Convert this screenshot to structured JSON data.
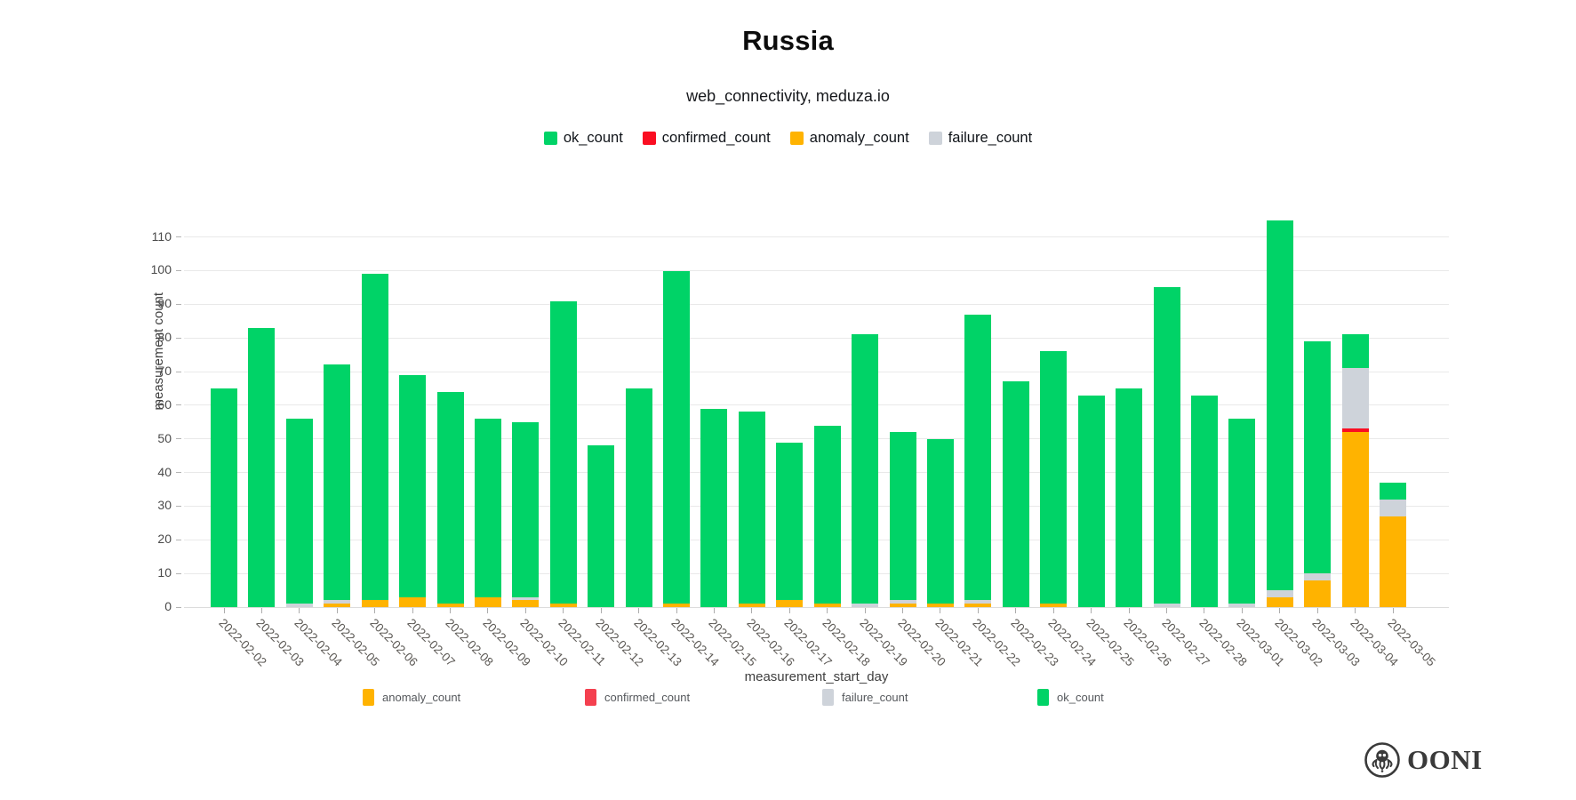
{
  "header": {
    "title": "Russia",
    "subtitle": "web_connectivity, meduza.io"
  },
  "top_legend": [
    {
      "label": "ok_count",
      "color": "#00d367"
    },
    {
      "label": "confirmed_count",
      "color": "#fa0e22"
    },
    {
      "label": "anomaly_count",
      "color": "#ffb300"
    },
    {
      "label": "failure_count",
      "color": "#ced3da"
    }
  ],
  "bottom_legend": [
    {
      "label": "anomaly_count",
      "color": "#ffb300"
    },
    {
      "label": "confirmed_count",
      "color": "#f4404f"
    },
    {
      "label": "failure_count",
      "color": "#ced3da"
    },
    {
      "label": "ok_count",
      "color": "#00d367"
    }
  ],
  "footer": {
    "brand": "OONI"
  },
  "chart_data": {
    "type": "bar",
    "stacked": true,
    "title": "Russia",
    "subtitle": "web_connectivity, meduza.io",
    "xlabel": "measurement_start_day",
    "ylabel": "measurement count",
    "ylim": [
      0,
      121
    ],
    "y_ticks": [
      0,
      10,
      20,
      30,
      40,
      50,
      60,
      70,
      80,
      90,
      100,
      110
    ],
    "grid": "horizontal",
    "legend_position": "top",
    "categories": [
      "2022-02-02",
      "2022-02-03",
      "2022-02-04",
      "2022-02-05",
      "2022-02-06",
      "2022-02-07",
      "2022-02-08",
      "2022-02-09",
      "2022-02-10",
      "2022-02-11",
      "2022-02-12",
      "2022-02-13",
      "2022-02-14",
      "2022-02-15",
      "2022-02-16",
      "2022-02-17",
      "2022-02-18",
      "2022-02-19",
      "2022-02-20",
      "2022-02-21",
      "2022-02-22",
      "2022-02-23",
      "2022-02-24",
      "2022-02-25",
      "2022-02-26",
      "2022-02-27",
      "2022-02-28",
      "2022-03-01",
      "2022-03-02",
      "2022-03-03",
      "2022-03-04",
      "2022-03-05"
    ],
    "series": [
      {
        "name": "anomaly_count",
        "color": "#ffb300",
        "values": [
          0,
          0,
          0,
          1,
          2,
          3,
          1,
          3,
          2,
          1,
          0,
          0,
          1,
          0,
          1,
          2,
          1,
          0,
          1,
          1,
          1,
          0,
          1,
          0,
          0,
          0,
          0,
          0,
          3,
          8,
          52,
          27
        ]
      },
      {
        "name": "confirmed_count",
        "color": "#fa0e22",
        "values": [
          0,
          0,
          0,
          0,
          0,
          0,
          0,
          0,
          0,
          0,
          0,
          0,
          0,
          0,
          0,
          0,
          0,
          0,
          0,
          0,
          0,
          0,
          0,
          0,
          0,
          0,
          0,
          0,
          0,
          0,
          1,
          0
        ]
      },
      {
        "name": "failure_count",
        "color": "#ced3da",
        "values": [
          0,
          0,
          1,
          1,
          0,
          0,
          0,
          0,
          1,
          0,
          0,
          0,
          0,
          0,
          0,
          0,
          0,
          1,
          1,
          0,
          1,
          0,
          0,
          0,
          0,
          1,
          0,
          1,
          2,
          2,
          18,
          5
        ]
      },
      {
        "name": "ok_count",
        "color": "#00d367",
        "values": [
          65,
          83,
          55,
          70,
          97,
          66,
          63,
          53,
          52,
          90,
          48,
          65,
          99,
          59,
          57,
          47,
          53,
          80,
          50,
          49,
          85,
          67,
          75,
          63,
          65,
          94,
          63,
          55,
          110,
          69,
          10,
          5
        ]
      }
    ],
    "totals": [
      65,
      83,
      56,
      72,
      99,
      69,
      64,
      56,
      55,
      91,
      48,
      65,
      100,
      59,
      58,
      49,
      54,
      81,
      52,
      50,
      87,
      67,
      76,
      63,
      65,
      95,
      63,
      56,
      115,
      79,
      81,
      37
    ]
  }
}
